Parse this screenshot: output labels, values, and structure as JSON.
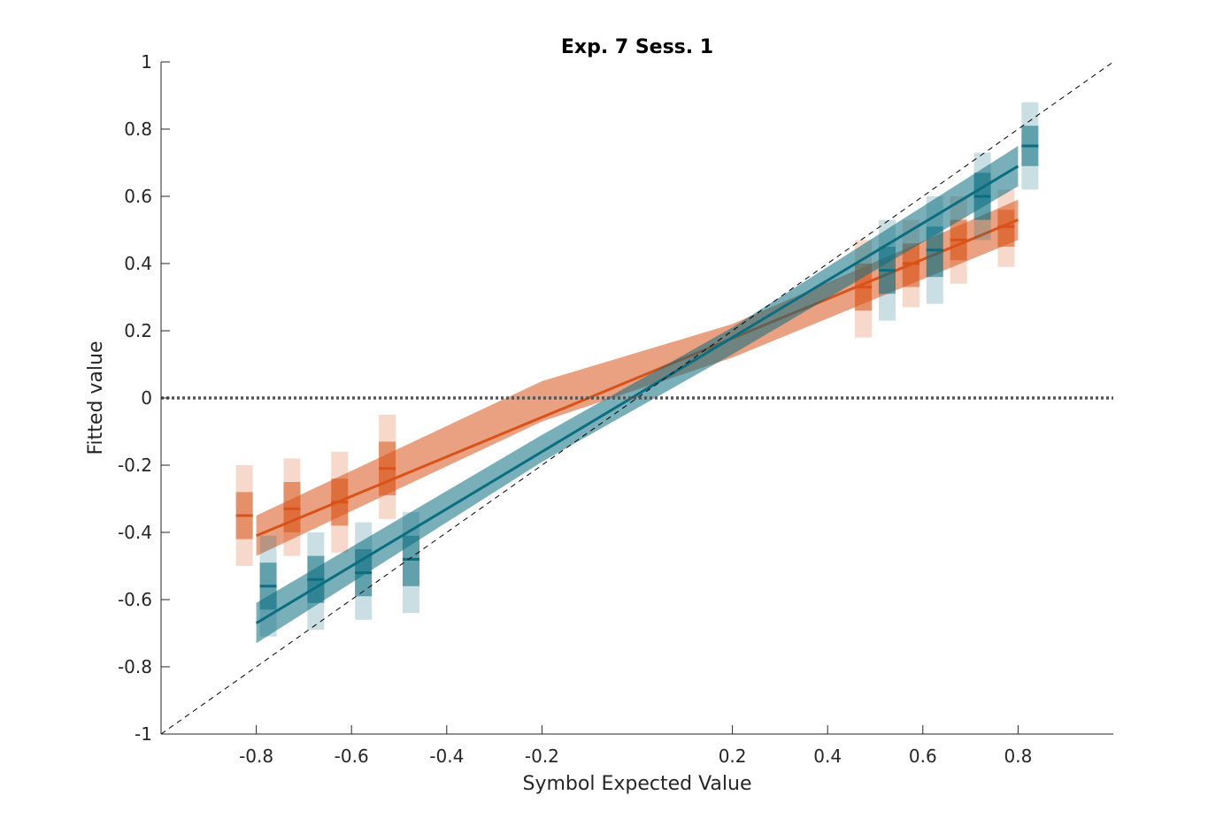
{
  "chart_data": {
    "type": "line",
    "title": "Exp. 7 Sess. 1",
    "xlabel": "Symbol Expected Value",
    "ylabel": "Fitted value",
    "xlim": [
      -1,
      1
    ],
    "ylim": [
      -1,
      1
    ],
    "xticks": [
      -0.8,
      -0.6,
      -0.4,
      -0.2,
      0.2,
      0.4,
      0.6,
      0.8
    ],
    "xtick_labels": [
      "-0.8",
      "-0.6",
      "-0.4",
      "-0.2",
      "0.2",
      "0.4",
      "0.6",
      "0.8"
    ],
    "yticks": [
      -1,
      -0.8,
      -0.6,
      -0.4,
      -0.2,
      0,
      0.2,
      0.4,
      0.6,
      0.8,
      1
    ],
    "ytick_labels": [
      "-1",
      "-0.8",
      "-0.6",
      "-0.4",
      "-0.2",
      "0",
      "0.2",
      "0.4",
      "0.6",
      "0.8",
      "1"
    ],
    "grid": false,
    "reference_lines": [
      {
        "kind": "identity-dashed",
        "color": "#000000"
      },
      {
        "kind": "zero-dotted",
        "color": "#555555"
      }
    ],
    "series": [
      {
        "color": "#d95319",
        "fit_line": [
          [
            -0.8,
            -0.41
          ],
          [
            0.8,
            0.53
          ]
        ],
        "fit_band": [
          [
            -0.8,
            -0.47,
            -0.35
          ],
          [
            -0.2,
            -0.07,
            0.05
          ],
          [
            0.2,
            0.12,
            0.22
          ],
          [
            0.8,
            0.47,
            0.59
          ]
        ],
        "points": [
          {
            "x": -0.825,
            "y": -0.35,
            "inner": [
              -0.42,
              -0.28
            ],
            "outer": [
              -0.5,
              -0.2
            ]
          },
          {
            "x": -0.725,
            "y": -0.33,
            "inner": [
              -0.4,
              -0.25
            ],
            "outer": [
              -0.47,
              -0.18
            ]
          },
          {
            "x": -0.625,
            "y": -0.31,
            "inner": [
              -0.38,
              -0.24
            ],
            "outer": [
              -0.46,
              -0.16
            ]
          },
          {
            "x": -0.525,
            "y": -0.21,
            "inner": [
              -0.29,
              -0.13
            ],
            "outer": [
              -0.36,
              -0.05
            ]
          },
          {
            "x": 0.475,
            "y": 0.33,
            "inner": [
              0.26,
              0.4
            ],
            "outer": [
              0.18,
              0.47
            ]
          },
          {
            "x": 0.575,
            "y": 0.4,
            "inner": [
              0.33,
              0.46
            ],
            "outer": [
              0.27,
              0.53
            ]
          },
          {
            "x": 0.675,
            "y": 0.47,
            "inner": [
              0.41,
              0.53
            ],
            "outer": [
              0.34,
              0.6
            ]
          },
          {
            "x": 0.775,
            "y": 0.51,
            "inner": [
              0.45,
              0.56
            ],
            "outer": [
              0.39,
              0.62
            ]
          }
        ]
      },
      {
        "color": "#0a6e80",
        "fit_line": [
          [
            -0.8,
            -0.67
          ],
          [
            0.8,
            0.69
          ]
        ],
        "fit_band": [
          [
            -0.8,
            -0.73,
            -0.61
          ],
          [
            -0.2,
            -0.19,
            -0.11
          ],
          [
            0.2,
            0.13,
            0.21
          ],
          [
            0.8,
            0.63,
            0.75
          ]
        ],
        "points": [
          {
            "x": -0.775,
            "y": -0.56,
            "inner": [
              -0.63,
              -0.49
            ],
            "outer": [
              -0.71,
              -0.41
            ]
          },
          {
            "x": -0.675,
            "y": -0.54,
            "inner": [
              -0.61,
              -0.47
            ],
            "outer": [
              -0.69,
              -0.4
            ]
          },
          {
            "x": -0.575,
            "y": -0.52,
            "inner": [
              -0.59,
              -0.45
            ],
            "outer": [
              -0.66,
              -0.37
            ]
          },
          {
            "x": -0.475,
            "y": -0.48,
            "inner": [
              -0.56,
              -0.41
            ],
            "outer": [
              -0.64,
              -0.34
            ]
          },
          {
            "x": 0.525,
            "y": 0.38,
            "inner": [
              0.31,
              0.45
            ],
            "outer": [
              0.23,
              0.53
            ]
          },
          {
            "x": 0.625,
            "y": 0.44,
            "inner": [
              0.36,
              0.51
            ],
            "outer": [
              0.28,
              0.6
            ]
          },
          {
            "x": 0.725,
            "y": 0.6,
            "inner": [
              0.53,
              0.67
            ],
            "outer": [
              0.47,
              0.73
            ]
          },
          {
            "x": 0.825,
            "y": 0.75,
            "inner": [
              0.69,
              0.81
            ],
            "outer": [
              0.62,
              0.88
            ]
          }
        ]
      }
    ]
  }
}
